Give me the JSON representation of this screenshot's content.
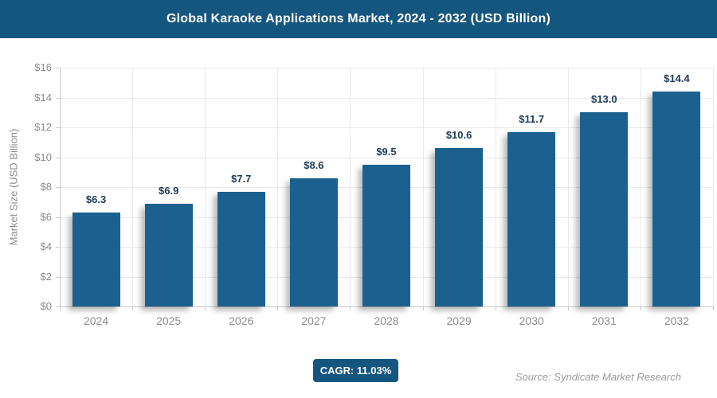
{
  "header": {
    "title": "Global Karaoke Applications Market, 2024 - 2032 (USD Billion)"
  },
  "chart_data": {
    "type": "bar",
    "title": "Global Karaoke Applications Market, 2024 - 2032 (USD Billion)",
    "categories": [
      "2024",
      "2025",
      "2026",
      "2027",
      "2028",
      "2029",
      "2030",
      "2031",
      "2032"
    ],
    "values": [
      6.3,
      6.9,
      7.7,
      8.6,
      9.5,
      10.6,
      11.7,
      13.0,
      14.4
    ],
    "bar_labels": [
      "$6.3",
      "$6.9",
      "$7.7",
      "$8.6",
      "$9.5",
      "$10.6",
      "$11.7",
      "$13.0",
      "$14.4"
    ],
    "xlabel": "",
    "ylabel": "Market Size (USD Billion)",
    "ylim": [
      0,
      16
    ],
    "ytick_step": 2,
    "ytick_labels": [
      "$0",
      "$2",
      "$4",
      "$6",
      "$8",
      "$10",
      "$12",
      "$14",
      "$16"
    ],
    "grid": true,
    "legend": "none",
    "colors": {
      "banner_bg": "#15567E",
      "banner_text": "#FFFFFF",
      "bar": "#1A618F",
      "value_label": "#1F3A5A",
      "axis_text": "#8C8C8C",
      "gridline": "#E9E9E9",
      "axis_line": "#C9C9C9",
      "badge_bg": "#15567E",
      "badge_text": "#FFFFFF",
      "source_text": "#9B9B9B"
    }
  },
  "footer": {
    "cagr_label": "CAGR: 11.03%",
    "source": "Source: Syndicate Market Research"
  }
}
